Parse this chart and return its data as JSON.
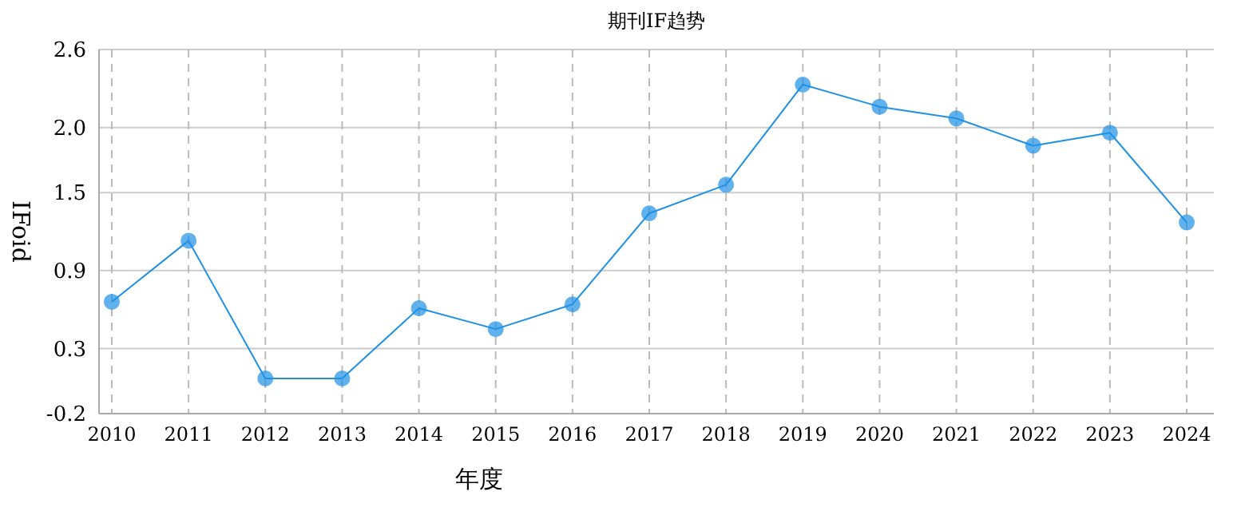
{
  "chart_data": {
    "type": "line",
    "title": "期刊IF趋势",
    "xlabel": "年度",
    "ylabel": "IFoid",
    "categories": [
      "2010",
      "2011",
      "2012",
      "2013",
      "2014",
      "2015",
      "2016",
      "2017",
      "2018",
      "2019",
      "2020",
      "2021",
      "2022",
      "2023",
      "2024"
    ],
    "series": [
      {
        "color": "#1e90e6",
        "values": [
          0.66,
          1.13,
          0.07,
          0.07,
          0.61,
          0.45,
          0.64,
          1.34,
          1.56,
          2.33,
          2.16,
          2.07,
          1.86,
          1.96,
          1.27
        ]
      }
    ],
    "ylim": [
      -0.2,
      2.6
    ],
    "yticks": [
      -0.2,
      0.3,
      0.9,
      1.5,
      {
        "value": 2.0,
        "label": "2.0"
      },
      2.6
    ],
    "grid": true,
    "marker": "circle",
    "line_style": "solid"
  }
}
